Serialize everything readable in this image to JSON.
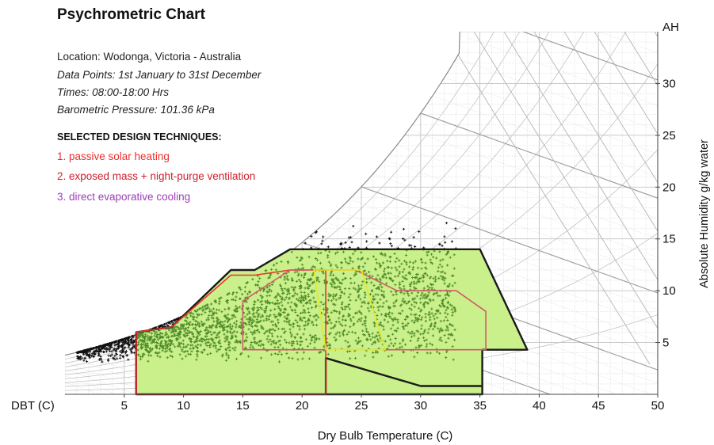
{
  "header": {
    "title": "Psychrometric Chart",
    "location": "Location: Wodonga, Victoria - Australia",
    "data_points": "Data Points: 1st January to 31st December",
    "times": "Times: 08:00-18:00 Hrs",
    "pressure": "Barometric Pressure: 101.36 kPa"
  },
  "techniques": {
    "heading": "SELECTED DESIGN TECHNIQUES:",
    "items": [
      {
        "label": "1. passive solar heating",
        "color": "#e8322e"
      },
      {
        "label": "2. exposed mass + night-purge ventilation",
        "color": "#d0202e"
      },
      {
        "label": "3. direct evaporative cooling",
        "color": "#9b3fb5"
      }
    ]
  },
  "chart_data": {
    "type": "scatter",
    "title": "Psychrometric Chart",
    "xlabel": "Dry Bulb Temperature (C)",
    "x_axis_prefix": "DBT (C)",
    "ylabel": "Absolute Humidity g/kg water",
    "y_axis_top_label": "AH",
    "xlim": [
      0,
      50
    ],
    "ylim": [
      0,
      35
    ],
    "x_ticks": [
      5,
      10,
      15,
      20,
      25,
      30,
      35,
      40,
      45,
      50
    ],
    "y_ticks": [
      5,
      10,
      15,
      20,
      25,
      30
    ],
    "grid": true,
    "zones": [
      {
        "name": "comfort + passive techniques zone",
        "fill": "#c9f08a",
        "stroke": "#1a1a1a",
        "points": [
          [
            6,
            0
          ],
          [
            6,
            6
          ],
          [
            9,
            6.5
          ],
          [
            14,
            12
          ],
          [
            16,
            12
          ],
          [
            19,
            14
          ],
          [
            35,
            14
          ],
          [
            39,
            4.3
          ],
          [
            35.2,
            4.3
          ],
          [
            35.2,
            0
          ],
          [
            22,
            0
          ],
          [
            22,
            3.5
          ],
          [
            30,
            0.8
          ],
          [
            35.2,
            0.8
          ],
          [
            35.2,
            0
          ]
        ]
      },
      {
        "name": "passive solar heating",
        "stroke": "#e8322e",
        "points": [
          [
            6,
            0
          ],
          [
            6,
            6
          ],
          [
            9,
            6.5
          ],
          [
            14,
            11.5
          ],
          [
            16,
            11.5
          ],
          [
            19,
            12
          ],
          [
            22,
            12
          ],
          [
            22,
            0
          ]
        ]
      },
      {
        "name": "exposed mass + night-purge ventilation",
        "stroke": "#d05a6a",
        "points": [
          [
            15,
            4.3
          ],
          [
            15,
            9
          ],
          [
            19,
            12
          ],
          [
            24.5,
            12
          ],
          [
            28,
            10
          ],
          [
            33,
            10
          ],
          [
            35.5,
            8
          ],
          [
            35.5,
            4.3
          ]
        ]
      },
      {
        "name": "direct evaporative cooling",
        "stroke": "#e5e82a",
        "points": [
          [
            21,
            12
          ],
          [
            25,
            12
          ],
          [
            27,
            4.3
          ],
          [
            22,
            4.3
          ]
        ]
      }
    ],
    "boundary": "dark-green-black outline along saturation curve from 6C to 39C",
    "point_cloud_description": "approx. 2500 hourly data points, 0-33C DBT, 0-15 g/kg",
    "point_color_inside": "#4f8a2a",
    "point_color_outside": "#111111"
  },
  "colors": {
    "grid": "#c4c4c4",
    "dense_grid": "#d9d9d9",
    "axis": "#444444",
    "zone_fill": "#c9f08a"
  }
}
